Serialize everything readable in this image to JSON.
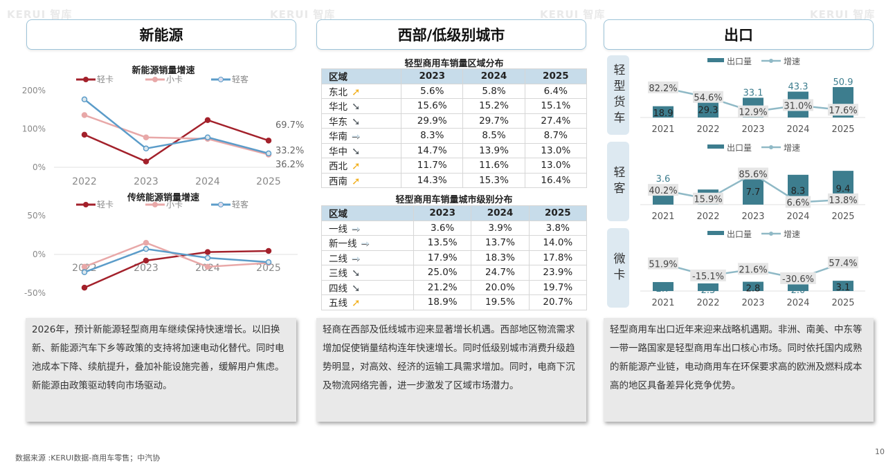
{
  "watermark": "KERUI 智库",
  "headers": {
    "left": "新能源",
    "middle": "西部/低级别城市",
    "right": "出口"
  },
  "region_table": {
    "title": "轻型商用车销量区域分布",
    "columns": [
      "区域",
      "2023",
      "2024",
      "2025"
    ],
    "rows": [
      {
        "label": "东北",
        "trend": "up",
        "values": [
          "5.6%",
          "5.8%",
          "6.4%"
        ]
      },
      {
        "label": "华北",
        "trend": "down",
        "values": [
          "15.6%",
          "15.2%",
          "15.1%"
        ]
      },
      {
        "label": "华东",
        "trend": "down",
        "values": [
          "29.9%",
          "29.7%",
          "27.4%"
        ]
      },
      {
        "label": "华南",
        "trend": "flat",
        "values": [
          "8.3%",
          "8.5%",
          "8.7%"
        ]
      },
      {
        "label": "华中",
        "trend": "down",
        "values": [
          "14.7%",
          "13.9%",
          "13.0%"
        ]
      },
      {
        "label": "西北",
        "trend": "up",
        "values": [
          "11.7%",
          "11.6%",
          "13.0%"
        ]
      },
      {
        "label": "西南",
        "trend": "up",
        "values": [
          "14.3%",
          "15.3%",
          "16.4%"
        ]
      }
    ]
  },
  "city_table": {
    "title": "轻型商用车销量城市级别分布",
    "columns": [
      "区域",
      "2023",
      "2024",
      "2025"
    ],
    "rows": [
      {
        "label": "一线",
        "trend": "flat",
        "values": [
          "3.6%",
          "3.9%",
          "3.8%"
        ]
      },
      {
        "label": "新一线",
        "trend": "flat",
        "values": [
          "13.5%",
          "13.7%",
          "14.0%"
        ]
      },
      {
        "label": "二线",
        "trend": "flat",
        "values": [
          "17.9%",
          "18.3%",
          "17.8%"
        ]
      },
      {
        "label": "三线",
        "trend": "down",
        "values": [
          "25.0%",
          "24.7%",
          "23.9%"
        ]
      },
      {
        "label": "四线",
        "trend": "down",
        "values": [
          "21.2%",
          "20.0%",
          "19.7%"
        ]
      },
      {
        "label": "五线",
        "trend": "up",
        "values": [
          "18.9%",
          "19.5%",
          "20.7%"
        ]
      }
    ]
  },
  "trend_colors": {
    "up": "#f2b01e",
    "down": "#555d63",
    "flat": "#cfe1ec"
  },
  "side_labels": [
    "轻型货车",
    "轻客",
    "微卡"
  ],
  "text_boxes": [
    "2026年，预计新能源轻型商用车继续保持快速增长。以旧换新、新能源汽车下乡等政策的支持将加速电动化替代。同时电池成本下降、续航提升，叠加补能设施完善，缓解用户焦虑。新能源由政策驱动转向市场驱动。",
    "轻商在西部及低线城市迎来显著增长机遇。西部地区物流需求增加促使销量结构连年快速增长。同时低级别城市消费升级趋势明显，对高效、经济的运输工具需求增加。同时，电商下沉及物流网络完善，进一步激发了区域市场潜力。",
    "轻型商用车出口近年来迎来战略机遇期。非洲、南美、中东等一带一路国家是轻型商用车出口核心市场。同时依托国内成熟的新能源产业链，电动商用车在环保要求高的欧洲及燃料成本高的地区具备差异化竞争优势。"
  ],
  "source": "数据来源 :KERUI数据-商用车零售；中汽协",
  "page_number": "10",
  "chart_data": [
    {
      "type": "line",
      "title": "新能源销量增速",
      "categories": [
        "2022",
        "2023",
        "2024",
        "2025"
      ],
      "ylim": [
        0,
        200
      ],
      "yticks": [
        "0%",
        "100%",
        "200%"
      ],
      "tick_values": [
        0,
        100,
        200
      ],
      "grid": false,
      "legend": "top",
      "series": [
        {
          "name": "轻卡",
          "color": "#a3212b",
          "values": [
            85,
            15,
            123,
            69.7
          ],
          "labels": [
            null,
            null,
            null,
            "69.7%"
          ]
        },
        {
          "name": "小卡",
          "color": "#e8a8a8",
          "values": [
            136,
            78,
            74,
            33.2
          ],
          "labels": [
            null,
            null,
            null,
            "33.2%"
          ]
        },
        {
          "name": "轻客",
          "color": "#5b9cc9",
          "values": [
            177,
            49,
            78,
            36.2
          ],
          "labels": [
            null,
            null,
            null,
            "36.2%"
          ]
        }
      ]
    },
    {
      "type": "line",
      "title": "传统能源销量增速",
      "categories": [
        "2022",
        "2023",
        "2024",
        "2025"
      ],
      "ylim": [
        -50,
        50
      ],
      "yticks": [
        "-50%",
        "0%",
        "50%"
      ],
      "tick_values": [
        -50,
        0,
        50
      ],
      "grid": false,
      "legend": "top",
      "series": [
        {
          "name": "轻卡",
          "color": "#a3212b",
          "values": [
            -43,
            -8,
            3,
            4.5
          ]
        },
        {
          "name": "小卡",
          "color": "#e8a8a8",
          "values": [
            -16,
            15,
            -16,
            -11
          ]
        },
        {
          "name": "轻客",
          "color": "#5b9cc9",
          "values": [
            -23,
            7,
            -4.5,
            -10
          ]
        }
      ]
    },
    {
      "type": "bar+line",
      "group": "轻型货车",
      "categories": [
        "2021",
        "2022",
        "2023",
        "2024",
        "2025"
      ],
      "legend": [
        "出口量",
        "增速"
      ],
      "bar_color": "#3d7d8e",
      "line_color": "#8fb9c6",
      "volume": [
        18.9,
        29.3,
        33.1,
        43.3,
        50.9
      ],
      "growth": [
        82.2,
        54.6,
        12.9,
        31.0,
        17.6
      ],
      "volume_labels": [
        "18.9",
        "29.3",
        "33.1",
        "43.3",
        "50.9"
      ],
      "growth_labels": [
        "82.2%",
        "54.6%",
        "12.9%",
        "31.0%",
        "17.6%"
      ]
    },
    {
      "type": "bar+line",
      "group": "轻客",
      "categories": [
        "2021",
        "2022",
        "2023",
        "2024",
        "2025"
      ],
      "legend": [
        "出口量",
        "增速"
      ],
      "bar_color": "#3d7d8e",
      "line_color": "#8fb9c6",
      "volume": [
        3.6,
        4.2,
        7.7,
        8.3,
        9.4
      ],
      "growth": [
        40.2,
        15.9,
        85.6,
        6.6,
        13.8
      ],
      "volume_labels": [
        "3.6",
        "",
        "7.7",
        "8.3",
        "9.4"
      ],
      "growth_labels": [
        "40.2%",
        "15.9%",
        "85.6%",
        "6.6%",
        "13.8%"
      ]
    },
    {
      "type": "bar+line",
      "group": "微卡",
      "categories": [
        "2021",
        "2022",
        "2023",
        "2024",
        "2025"
      ],
      "legend": [
        "出口量",
        "增速"
      ],
      "bar_color": "#3d7d8e",
      "line_color": "#8fb9c6",
      "volume": [
        2.7,
        2.3,
        2.8,
        2.0,
        3.1
      ],
      "growth": [
        51.9,
        -15.1,
        21.6,
        -30.6,
        57.4
      ],
      "volume_labels": [
        "2.7",
        "2.3",
        "2.8",
        "2.0",
        "3.1"
      ],
      "growth_labels": [
        "51.9%",
        "-15.1%",
        "21.6%",
        "-30.6%",
        "57.4%"
      ]
    }
  ]
}
